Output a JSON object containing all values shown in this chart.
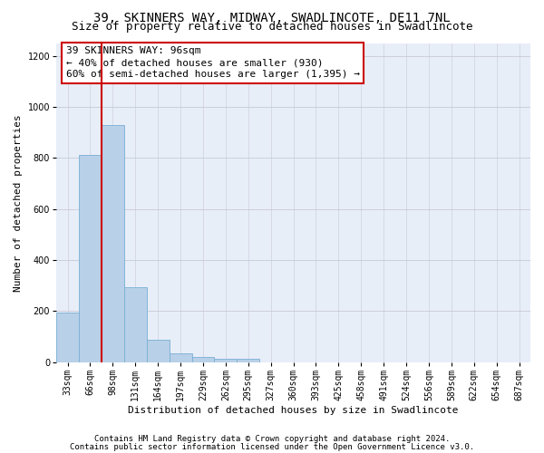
{
  "title": "39, SKINNERS WAY, MIDWAY, SWADLINCOTE, DE11 7NL",
  "subtitle": "Size of property relative to detached houses in Swadlincote",
  "xlabel": "Distribution of detached houses by size in Swadlincote",
  "ylabel": "Number of detached properties",
  "categories": [
    "33sqm",
    "66sqm",
    "98sqm",
    "131sqm",
    "164sqm",
    "197sqm",
    "229sqm",
    "262sqm",
    "295sqm",
    "327sqm",
    "360sqm",
    "393sqm",
    "425sqm",
    "458sqm",
    "491sqm",
    "524sqm",
    "556sqm",
    "589sqm",
    "622sqm",
    "654sqm",
    "687sqm"
  ],
  "values": [
    195,
    810,
    930,
    295,
    88,
    35,
    20,
    15,
    12,
    0,
    0,
    0,
    0,
    0,
    0,
    0,
    0,
    0,
    0,
    0,
    0
  ],
  "bar_color": "#b8d0e8",
  "bar_edge_color": "#7aafd4",
  "vline_color": "#cc0000",
  "annotation_line1": "39 SKINNERS WAY: 96sqm",
  "annotation_line2": "← 40% of detached houses are smaller (930)",
  "annotation_line3": "60% of semi-detached houses are larger (1,395) →",
  "annotation_box_color": "#ffffff",
  "annotation_box_edge_color": "#cc0000",
  "ylim": [
    0,
    1250
  ],
  "yticks": [
    0,
    200,
    400,
    600,
    800,
    1000,
    1200
  ],
  "footnote1": "Contains HM Land Registry data © Crown copyright and database right 2024.",
  "footnote2": "Contains public sector information licensed under the Open Government Licence v3.0.",
  "bg_color": "#e8eef8",
  "grid_color": "#c8c8d8",
  "title_fontsize": 10,
  "subtitle_fontsize": 9,
  "axis_label_fontsize": 8,
  "tick_fontsize": 7,
  "annotation_fontsize": 8,
  "footnote_fontsize": 6.5
}
